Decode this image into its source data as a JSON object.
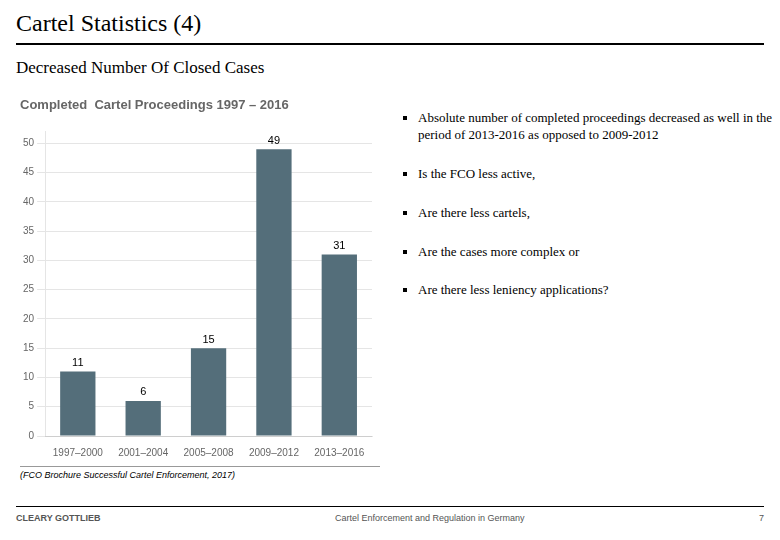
{
  "title": "Cartel Statistics (4)",
  "subtitle": "Decreased Number Of Closed Cases",
  "bullet_points": [
    "Absolute number of completed proceedings decreased as well in the period of 2013-2016 as opposed to 2009-2012",
    "Is the FCO less active,",
    "Are there less cartels,",
    "Are the cases more complex or",
    "Are there less leniency applications?"
  ],
  "footnote": "(FCO Brochure Successful Cartel Enforcement, 2017)",
  "footer_left": "CLEARY GOTTLIEB",
  "footer_center": "Cartel Enforcement and Regulation in Germany",
  "footer_right": "7",
  "chart_data": {
    "type": "bar",
    "title": "Completed  Cartel Proceedings 1997 – 2016",
    "categories": [
      "1997–2000",
      "2001–2004",
      "2005–2008",
      "2009–2012",
      "2013–2016"
    ],
    "values": [
      11,
      6,
      15,
      49,
      31
    ],
    "color": "#546E7A",
    "ylim": [
      0,
      52
    ],
    "yticks": [
      0,
      5,
      10,
      15,
      20,
      25,
      30,
      35,
      40,
      45,
      50
    ],
    "grid": true,
    "data_labels": true
  }
}
